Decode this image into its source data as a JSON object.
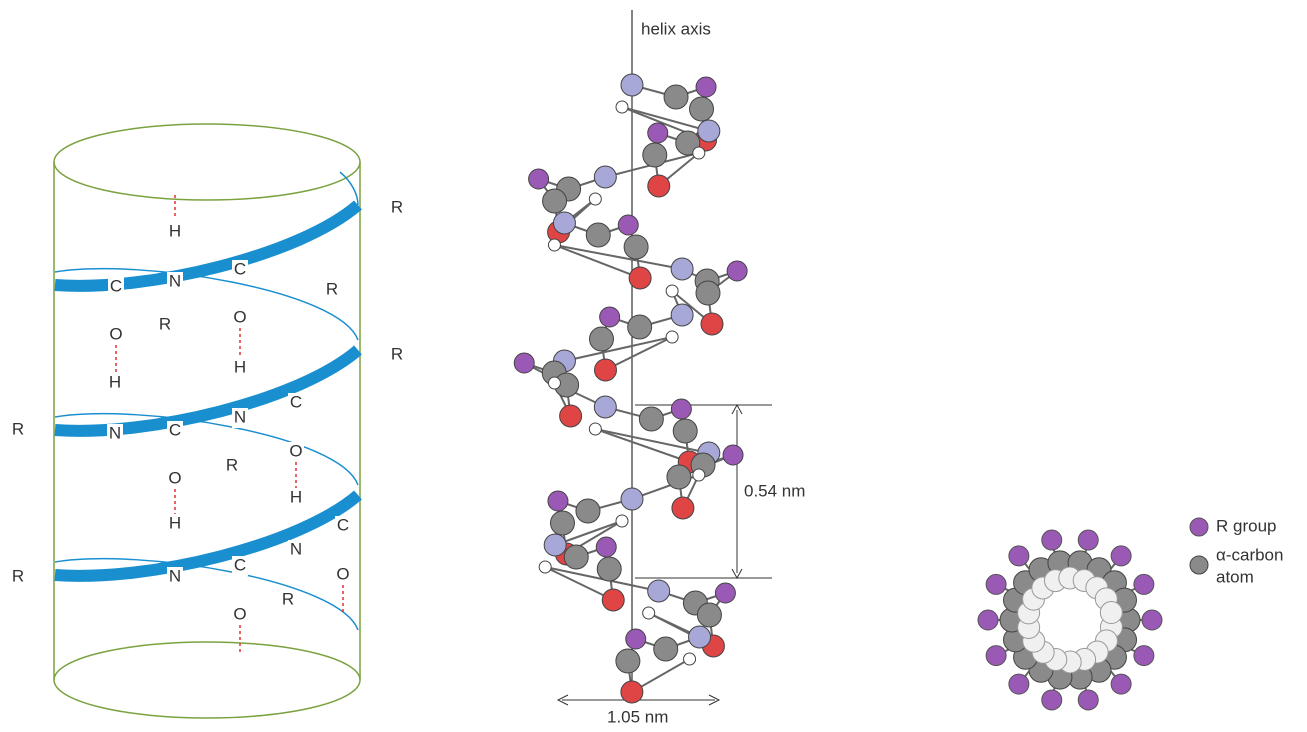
{
  "left_labels": [
    "R",
    "H",
    "N",
    "C",
    "O",
    "R",
    "C",
    "O",
    "R",
    "R",
    "H",
    "N",
    "H",
    "N",
    "C",
    "O",
    "C",
    "O",
    "R",
    "R",
    "H",
    "N",
    "H",
    "N",
    "C",
    "O",
    "C",
    "O",
    "R",
    "R"
  ],
  "helix_axis_label": "helix axis",
  "rise_label": "0.54 nm",
  "diameter_label": "1.05 nm",
  "legend": {
    "items": [
      {
        "lines": [
          "R group"
        ]
      },
      {
        "lines": [
          "α-carbon",
          "atom"
        ]
      }
    ]
  }
}
